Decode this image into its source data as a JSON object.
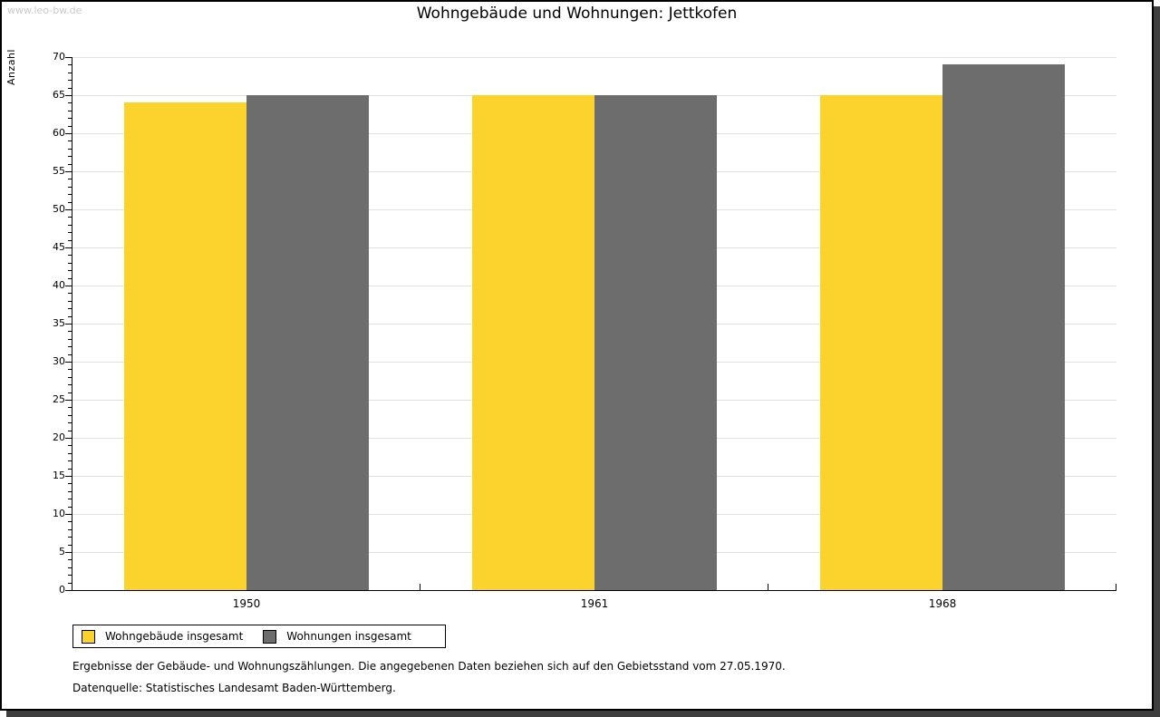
{
  "watermark": "www.leo-bw.de",
  "title": "Wohngebäude und Wohnungen: Jettkofen",
  "chart_data": {
    "type": "bar",
    "title": "Wohngebäude und Wohnungen: Jettkofen",
    "categories": [
      "1950",
      "1961",
      "1968"
    ],
    "series": [
      {
        "name": "Wohngebäude insgesamt",
        "color": "#fcd32d",
        "values": [
          64,
          65,
          65
        ]
      },
      {
        "name": "Wohnungen insgesamt",
        "color": "#6d6d6d",
        "values": [
          65,
          65,
          69
        ]
      }
    ],
    "xlabel": "",
    "ylabel": "Anzahl",
    "ylim": [
      0,
      70
    ],
    "ytick_step": 5,
    "minor_tick_step": 1,
    "grid": true,
    "gridline_color": "#e2e2e2",
    "axis_color": "#000000",
    "legend_position": "bottom-left"
  },
  "footer": {
    "line1": "Ergebnisse der Gebäude- und Wohnungszählungen. Die angegebenen Daten beziehen sich auf den Gebietsstand vom 27.05.1970.",
    "line2": "Datenquelle: Statistisches Landesamt Baden-Württemberg."
  }
}
